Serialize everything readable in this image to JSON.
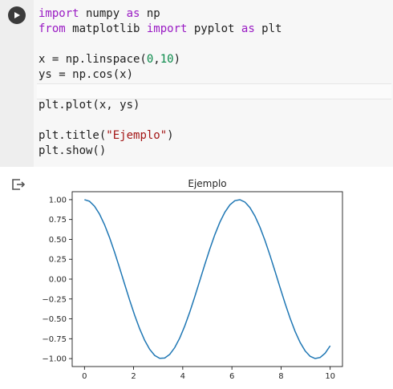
{
  "cell": {
    "code_lines": [
      [
        {
          "t": "import",
          "c": "kw"
        },
        {
          "t": " numpy ",
          "c": ""
        },
        {
          "t": "as",
          "c": "kw"
        },
        {
          "t": " np",
          "c": ""
        }
      ],
      [
        {
          "t": "from",
          "c": "kw"
        },
        {
          "t": " matplotlib ",
          "c": ""
        },
        {
          "t": "import",
          "c": "kw"
        },
        {
          "t": " pyplot ",
          "c": ""
        },
        {
          "t": "as",
          "c": "kw"
        },
        {
          "t": " plt",
          "c": ""
        }
      ],
      [],
      [
        {
          "t": "x = np.linspace(",
          "c": ""
        },
        {
          "t": "0",
          "c": "num"
        },
        {
          "t": ",",
          "c": ""
        },
        {
          "t": "10",
          "c": "num"
        },
        {
          "t": ")",
          "c": ""
        }
      ],
      [
        {
          "t": "ys = np.cos(x)",
          "c": ""
        }
      ],
      [],
      [
        {
          "t": "plt.plot(x, ys)",
          "c": ""
        }
      ],
      [],
      [
        {
          "t": "plt.title(",
          "c": ""
        },
        {
          "t": "\"Ejemplo\"",
          "c": "str"
        },
        {
          "t": ")",
          "c": ""
        }
      ],
      [
        {
          "t": "plt.show()",
          "c": ""
        }
      ]
    ]
  },
  "chart_data": {
    "type": "line",
    "title": "Ejemplo",
    "xlabel": "",
    "ylabel": "",
    "xlim": [
      -0.5,
      10.5
    ],
    "ylim": [
      -1.1,
      1.1
    ],
    "xticks": [
      0,
      2,
      4,
      6,
      8,
      10
    ],
    "xtick_labels": [
      "0",
      "2",
      "4",
      "6",
      "8",
      "10"
    ],
    "yticks": [
      1.0,
      0.75,
      0.5,
      0.25,
      0.0,
      -0.25,
      -0.5,
      -0.75,
      -1.0
    ],
    "ytick_labels": [
      "1.00",
      "0.75",
      "0.50",
      "0.25",
      "0.00",
      "−0.25",
      "−0.50",
      "−0.75",
      "−1.00"
    ],
    "series": [
      {
        "function": "cos",
        "x_start": 0,
        "x_end": 10,
        "num_points": 50,
        "color": "#1f77b4"
      }
    ],
    "grid": false,
    "legend": "none"
  },
  "colors": {
    "line": "#1f77b4",
    "keyword": "#9a1bc4",
    "number": "#0a8a4a",
    "string": "#a31515"
  },
  "icons": {
    "run": "play-icon",
    "output": "output-redirect-icon"
  }
}
